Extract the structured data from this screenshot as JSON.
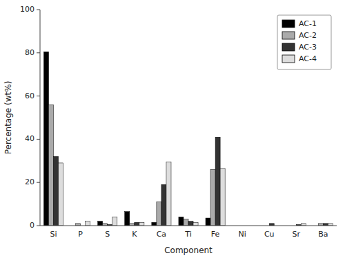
{
  "chart_data": {
    "type": "bar",
    "xlabel": "Component",
    "ylabel": "Percentage (wt%)",
    "categories": [
      "Si",
      "P",
      "S",
      "K",
      "Ca",
      "Ti",
      "Fe",
      "Ni",
      "Cu",
      "Sr",
      "Ba"
    ],
    "series": [
      {
        "name": "AC-1",
        "color": "#000000",
        "values": [
          80.5,
          0.0,
          2.0,
          6.5,
          1.5,
          4.0,
          3.5,
          0.0,
          0.0,
          0.0,
          0.0
        ]
      },
      {
        "name": "AC-2",
        "color": "#aaaaaa",
        "values": [
          56.0,
          1.0,
          1.0,
          1.0,
          11.0,
          3.0,
          26.0,
          0.0,
          0.0,
          0.0,
          1.0
        ]
      },
      {
        "name": "AC-3",
        "color": "#333333",
        "values": [
          32.0,
          0.0,
          0.5,
          1.5,
          19.0,
          2.0,
          41.0,
          0.0,
          1.0,
          0.5,
          1.0
        ]
      },
      {
        "name": "AC-4",
        "color": "#dddddd",
        "values": [
          29.0,
          2.0,
          4.0,
          1.5,
          29.5,
          1.5,
          26.5,
          0.0,
          0.0,
          1.0,
          1.0
        ]
      }
    ],
    "ylim": [
      0,
      100
    ],
    "yticks": [
      0,
      20,
      40,
      60,
      80,
      100
    ],
    "legend": "upper right",
    "grid": false
  }
}
